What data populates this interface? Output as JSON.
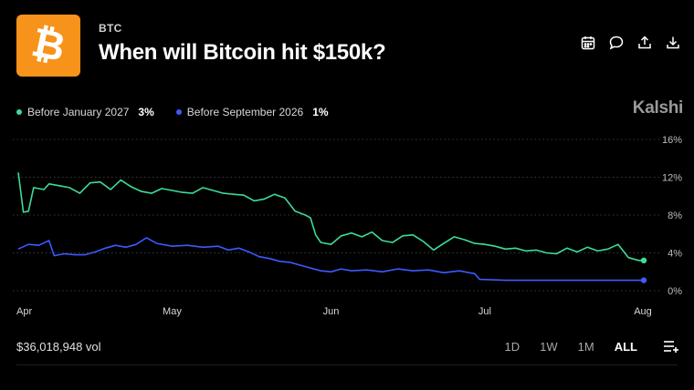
{
  "header": {
    "logo_symbol": "₿",
    "ticker": "BTC",
    "title": "When will Bitcoin hit $150k?",
    "brand": "Kalshi",
    "toolbar_icons": [
      "calendar-icon",
      "comment-icon",
      "share-icon",
      "download-icon"
    ]
  },
  "legend": [
    {
      "label": "Before January 2027",
      "value": "3%",
      "color": "#3ddc97"
    },
    {
      "label": "Before September 2026",
      "value": "1%",
      "color": "#3b5bff"
    }
  ],
  "footer": {
    "volume": "$36,018,948 vol",
    "ranges": [
      "1D",
      "1W",
      "1M",
      "ALL"
    ],
    "active_range": "ALL"
  },
  "colors": {
    "background": "#000000",
    "green": "#3ddc97",
    "blue": "#3b5bff",
    "grid": "#3a3a3a"
  },
  "chart_data": {
    "type": "line",
    "x_tick_labels": [
      "Apr",
      "May",
      "Jun",
      "Jul",
      "Aug"
    ],
    "y_tick_labels": [
      "16%",
      "12%",
      "8%",
      "4%",
      "0%"
    ],
    "ylim": [
      0,
      16
    ],
    "xlim": [
      "2026-04-01",
      "2026-08-01"
    ],
    "grid": "horizontal dotted",
    "series": [
      {
        "name": "Before January 2027",
        "color": "#3ddc97",
        "points": [
          [
            "2026-04-01",
            12.5
          ],
          [
            "2026-04-02",
            8.3
          ],
          [
            "2026-04-03",
            8.4
          ],
          [
            "2026-04-04",
            10.9
          ],
          [
            "2026-04-06",
            10.7
          ],
          [
            "2026-04-07",
            11.3
          ],
          [
            "2026-04-09",
            11.1
          ],
          [
            "2026-04-11",
            10.9
          ],
          [
            "2026-04-13",
            10.3
          ],
          [
            "2026-04-15",
            11.4
          ],
          [
            "2026-04-17",
            11.5
          ],
          [
            "2026-04-19",
            10.7
          ],
          [
            "2026-04-21",
            11.7
          ],
          [
            "2026-04-23",
            11.0
          ],
          [
            "2026-04-25",
            10.5
          ],
          [
            "2026-04-27",
            10.3
          ],
          [
            "2026-04-29",
            10.8
          ],
          [
            "2026-05-01",
            10.6
          ],
          [
            "2026-05-03",
            10.4
          ],
          [
            "2026-05-05",
            10.3
          ],
          [
            "2026-05-07",
            10.9
          ],
          [
            "2026-05-09",
            10.6
          ],
          [
            "2026-05-11",
            10.3
          ],
          [
            "2026-05-13",
            10.2
          ],
          [
            "2026-05-15",
            10.1
          ],
          [
            "2026-05-17",
            9.5
          ],
          [
            "2026-05-19",
            9.7
          ],
          [
            "2026-05-21",
            10.2
          ],
          [
            "2026-05-23",
            9.8
          ],
          [
            "2026-05-25",
            8.4
          ],
          [
            "2026-05-27",
            8.0
          ],
          [
            "2026-05-28",
            7.7
          ],
          [
            "2026-05-29",
            5.9
          ],
          [
            "2026-05-30",
            5.1
          ],
          [
            "2026-06-01",
            4.9
          ],
          [
            "2026-06-03",
            5.8
          ],
          [
            "2026-06-05",
            6.1
          ],
          [
            "2026-06-07",
            5.7
          ],
          [
            "2026-06-09",
            6.2
          ],
          [
            "2026-06-11",
            5.3
          ],
          [
            "2026-06-13",
            5.1
          ],
          [
            "2026-06-15",
            5.8
          ],
          [
            "2026-06-17",
            5.9
          ],
          [
            "2026-06-19",
            5.2
          ],
          [
            "2026-06-21",
            4.3
          ],
          [
            "2026-06-23",
            5.0
          ],
          [
            "2026-06-25",
            5.7
          ],
          [
            "2026-06-27",
            5.4
          ],
          [
            "2026-06-29",
            5.0
          ],
          [
            "2026-07-01",
            4.9
          ],
          [
            "2026-07-03",
            4.7
          ],
          [
            "2026-07-05",
            4.4
          ],
          [
            "2026-07-07",
            4.5
          ],
          [
            "2026-07-09",
            4.2
          ],
          [
            "2026-07-11",
            4.3
          ],
          [
            "2026-07-13",
            4.0
          ],
          [
            "2026-07-15",
            3.9
          ],
          [
            "2026-07-17",
            4.5
          ],
          [
            "2026-07-19",
            4.1
          ],
          [
            "2026-07-21",
            4.6
          ],
          [
            "2026-07-23",
            4.2
          ],
          [
            "2026-07-25",
            4.4
          ],
          [
            "2026-07-27",
            4.9
          ],
          [
            "2026-07-28",
            4.2
          ],
          [
            "2026-07-29",
            3.5
          ],
          [
            "2026-07-31",
            3.2
          ],
          [
            "2026-08-01",
            3.2
          ]
        ]
      },
      {
        "name": "Before September 2026",
        "color": "#3b5bff",
        "points": [
          [
            "2026-04-01",
            4.4
          ],
          [
            "2026-04-03",
            4.9
          ],
          [
            "2026-04-05",
            4.8
          ],
          [
            "2026-04-07",
            5.3
          ],
          [
            "2026-04-08",
            3.7
          ],
          [
            "2026-04-10",
            3.9
          ],
          [
            "2026-04-12",
            3.8
          ],
          [
            "2026-04-14",
            3.8
          ],
          [
            "2026-04-16",
            4.1
          ],
          [
            "2026-04-18",
            4.5
          ],
          [
            "2026-04-20",
            4.8
          ],
          [
            "2026-04-22",
            4.6
          ],
          [
            "2026-04-24",
            4.9
          ],
          [
            "2026-04-26",
            5.6
          ],
          [
            "2026-04-28",
            5.0
          ],
          [
            "2026-05-01",
            4.7
          ],
          [
            "2026-05-04",
            4.8
          ],
          [
            "2026-05-07",
            4.6
          ],
          [
            "2026-05-10",
            4.7
          ],
          [
            "2026-05-12",
            4.3
          ],
          [
            "2026-05-14",
            4.5
          ],
          [
            "2026-05-16",
            4.1
          ],
          [
            "2026-05-18",
            3.6
          ],
          [
            "2026-05-20",
            3.4
          ],
          [
            "2026-05-22",
            3.1
          ],
          [
            "2026-05-24",
            3.0
          ],
          [
            "2026-05-26",
            2.7
          ],
          [
            "2026-05-28",
            2.4
          ],
          [
            "2026-05-30",
            2.1
          ],
          [
            "2026-06-01",
            2.0
          ],
          [
            "2026-06-03",
            2.3
          ],
          [
            "2026-06-05",
            2.1
          ],
          [
            "2026-06-08",
            2.2
          ],
          [
            "2026-06-11",
            2.0
          ],
          [
            "2026-06-14",
            2.3
          ],
          [
            "2026-06-17",
            2.1
          ],
          [
            "2026-06-20",
            2.2
          ],
          [
            "2026-06-23",
            1.9
          ],
          [
            "2026-06-26",
            2.1
          ],
          [
            "2026-06-29",
            1.8
          ],
          [
            "2026-06-30",
            1.2
          ],
          [
            "2026-07-05",
            1.1
          ],
          [
            "2026-07-15",
            1.1
          ],
          [
            "2026-07-25",
            1.1
          ],
          [
            "2026-08-01",
            1.1
          ]
        ]
      }
    ]
  }
}
